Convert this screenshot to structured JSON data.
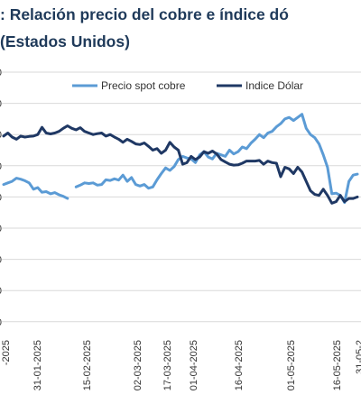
{
  "header": {
    "title": ": Relación precio del cobre e índice dó",
    "subtitle": "(Estados Unidos)"
  },
  "colors": {
    "copper": "#5b9bd5",
    "dollar": "#1f3864",
    "grid": "#d9d9d9",
    "title": "#1f3a5a"
  },
  "chart_data": {
    "type": "line",
    "legend_position": "top",
    "grid": true,
    "y_tick_labels": [
      "0",
      "0",
      "0",
      "0",
      "0",
      "0",
      "0",
      "0",
      "0"
    ],
    "x_tick_labels": [
      "-2025",
      "31-01-2025",
      "15-02-2025",
      "02-03-2025",
      "17-03-2025",
      "01-04-2025",
      "16-04-2025",
      "01-05-2025",
      "16-05-2025",
      "31-05-2"
    ],
    "series": [
      {
        "name": "Precio spot cobre",
        "points": [
          [
            0,
            4.4
          ],
          [
            1,
            4.45
          ],
          [
            2,
            4.5
          ],
          [
            3,
            4.6
          ],
          [
            4,
            4.57
          ],
          [
            5,
            4.52
          ],
          [
            6,
            4.45
          ],
          [
            7,
            4.25
          ],
          [
            8,
            4.3
          ],
          [
            9,
            4.15
          ],
          [
            10,
            4.17
          ],
          [
            11,
            4.1
          ],
          [
            12,
            4.14
          ],
          [
            13,
            4.07
          ],
          [
            14,
            4.02
          ],
          [
            15,
            3.95
          ],
          [
            17,
            4.32
          ],
          [
            18,
            4.38
          ],
          [
            19,
            4.45
          ],
          [
            20,
            4.43
          ],
          [
            21,
            4.45
          ],
          [
            22,
            4.38
          ],
          [
            23,
            4.4
          ],
          [
            24,
            4.55
          ],
          [
            25,
            4.53
          ],
          [
            26,
            4.58
          ],
          [
            27,
            4.54
          ],
          [
            28,
            4.7
          ],
          [
            29,
            4.5
          ],
          [
            30,
            4.62
          ],
          [
            31,
            4.4
          ],
          [
            32,
            4.35
          ],
          [
            33,
            4.4
          ],
          [
            34,
            4.28
          ],
          [
            35,
            4.32
          ],
          [
            36,
            4.55
          ],
          [
            37,
            4.75
          ],
          [
            38,
            4.93
          ],
          [
            39,
            4.85
          ],
          [
            40,
            4.97
          ],
          [
            41,
            5.2
          ],
          [
            42,
            5.3
          ],
          [
            43,
            5.25
          ],
          [
            44,
            5.22
          ],
          [
            45,
            5.1
          ],
          [
            46,
            5.35
          ],
          [
            47,
            5.45
          ],
          [
            48,
            5.28
          ],
          [
            49,
            5.22
          ],
          [
            50,
            5.4
          ],
          [
            51,
            5.35
          ],
          [
            52,
            5.3
          ],
          [
            53,
            5.5
          ],
          [
            54,
            5.38
          ],
          [
            55,
            5.45
          ],
          [
            56,
            5.6
          ],
          [
            57,
            5.55
          ],
          [
            58,
            5.72
          ],
          [
            59,
            5.85
          ],
          [
            60,
            6.0
          ],
          [
            61,
            5.9
          ],
          [
            62,
            6.05
          ],
          [
            63,
            6.1
          ],
          [
            64,
            6.25
          ],
          [
            65,
            6.35
          ],
          [
            66,
            6.5
          ],
          [
            67,
            6.55
          ],
          [
            68,
            6.45
          ],
          [
            69,
            6.55
          ],
          [
            70,
            6.65
          ],
          [
            71,
            6.2
          ],
          [
            72,
            6.0
          ],
          [
            73,
            5.9
          ],
          [
            74,
            5.7
          ],
          [
            75,
            5.35
          ],
          [
            76,
            4.95
          ],
          [
            77,
            4.1
          ],
          [
            78,
            4.12
          ],
          [
            79,
            4.05
          ],
          [
            80,
            3.82
          ],
          [
            81,
            4.5
          ],
          [
            82,
            4.7
          ],
          [
            83,
            4.73
          ]
        ]
      },
      {
        "name": "Indice Dólar",
        "points": [
          [
            0,
            5.95
          ],
          [
            1,
            6.05
          ],
          [
            2,
            5.92
          ],
          [
            3,
            5.85
          ],
          [
            4,
            5.95
          ],
          [
            5,
            5.92
          ],
          [
            6,
            5.94
          ],
          [
            7,
            5.95
          ],
          [
            8,
            6.0
          ],
          [
            9,
            6.23
          ],
          [
            10,
            6.05
          ],
          [
            11,
            6.02
          ],
          [
            12,
            6.05
          ],
          [
            13,
            6.1
          ],
          [
            14,
            6.2
          ],
          [
            15,
            6.28
          ],
          [
            16,
            6.2
          ],
          [
            17,
            6.15
          ],
          [
            18,
            6.22
          ],
          [
            19,
            6.1
          ],
          [
            20,
            6.05
          ],
          [
            21,
            6.0
          ],
          [
            22,
            6.03
          ],
          [
            23,
            6.05
          ],
          [
            24,
            5.95
          ],
          [
            25,
            6.0
          ],
          [
            26,
            5.92
          ],
          [
            27,
            5.85
          ],
          [
            28,
            5.75
          ],
          [
            29,
            5.85
          ],
          [
            30,
            5.78
          ],
          [
            31,
            5.7
          ],
          [
            32,
            5.68
          ],
          [
            33,
            5.73
          ],
          [
            34,
            5.62
          ],
          [
            35,
            5.5
          ],
          [
            36,
            5.55
          ],
          [
            37,
            5.4
          ],
          [
            38,
            5.5
          ],
          [
            39,
            5.75
          ],
          [
            40,
            5.6
          ],
          [
            41,
            5.5
          ],
          [
            42,
            5.05
          ],
          [
            43,
            5.1
          ],
          [
            44,
            5.3
          ],
          [
            45,
            5.2
          ],
          [
            46,
            5.28
          ],
          [
            47,
            5.45
          ],
          [
            48,
            5.4
          ],
          [
            49,
            5.47
          ],
          [
            50,
            5.38
          ],
          [
            51,
            5.2
          ],
          [
            52,
            5.12
          ],
          [
            53,
            5.05
          ],
          [
            54,
            5.02
          ],
          [
            55,
            5.03
          ],
          [
            56,
            5.08
          ],
          [
            57,
            5.15
          ],
          [
            58,
            5.15
          ],
          [
            59,
            5.15
          ],
          [
            60,
            5.17
          ],
          [
            61,
            5.05
          ],
          [
            62,
            5.15
          ],
          [
            63,
            5.1
          ],
          [
            64,
            5.08
          ],
          [
            65,
            4.65
          ],
          [
            66,
            4.95
          ],
          [
            67,
            4.9
          ],
          [
            68,
            4.75
          ],
          [
            69,
            4.95
          ],
          [
            70,
            4.8
          ],
          [
            71,
            4.5
          ],
          [
            72,
            4.2
          ],
          [
            73,
            4.08
          ],
          [
            74,
            4.05
          ],
          [
            75,
            4.25
          ],
          [
            76,
            4.05
          ],
          [
            77,
            3.8
          ],
          [
            78,
            3.85
          ],
          [
            79,
            4.05
          ],
          [
            80,
            3.85
          ],
          [
            81,
            3.95
          ],
          [
            82,
            3.95
          ],
          [
            83,
            4.0
          ]
        ]
      }
    ]
  }
}
